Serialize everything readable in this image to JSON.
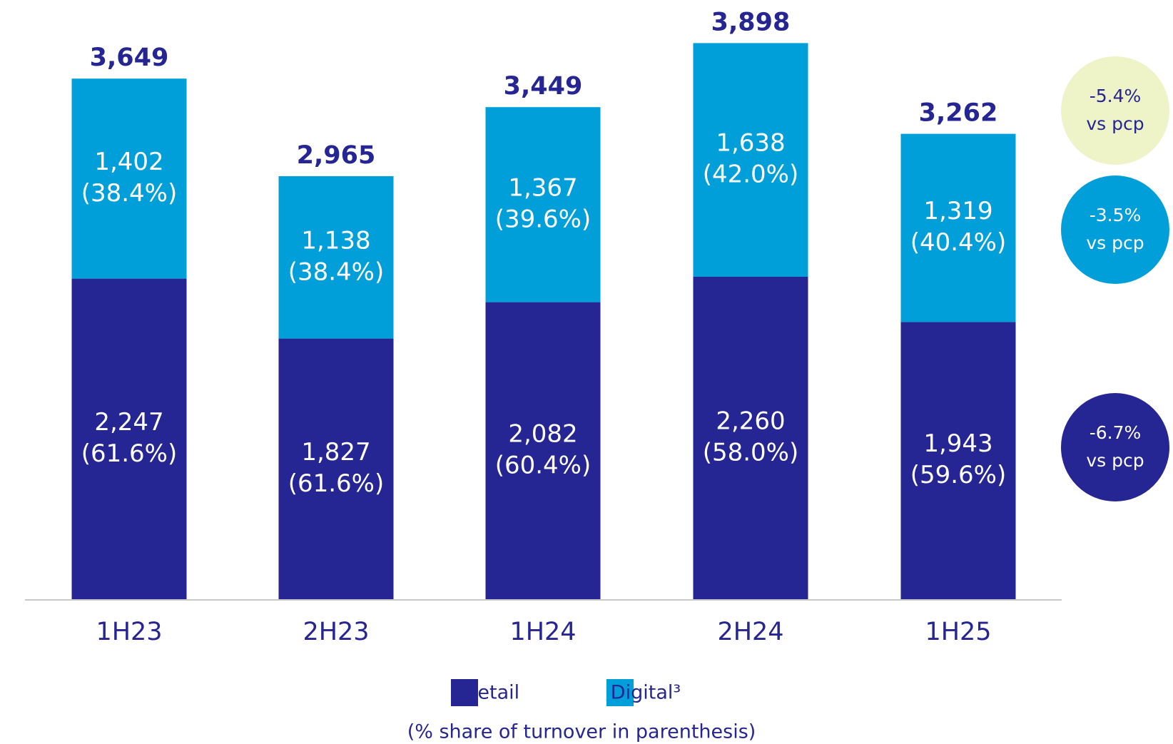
{
  "chart_data": {
    "type": "stacked_bar",
    "categories": [
      "1H23",
      "2H23",
      "1H24",
      "2H24",
      "1H25"
    ],
    "series": [
      {
        "name": "Retail",
        "color": "#252593",
        "values": [
          2247,
          1827,
          2082,
          2260,
          1943
        ],
        "value_labels": [
          "2,247",
          "1,827",
          "2,082",
          "2,260",
          "1,943"
        ],
        "share_labels": [
          "(61.6%)",
          "(61.6%)",
          "(60.4%)",
          "(58.0%)",
          "(59.6%)"
        ]
      },
      {
        "name": "Digital³",
        "color": "#009fd9",
        "values": [
          1402,
          1138,
          1367,
          1638,
          1319
        ],
        "value_labels": [
          "1,402",
          "1,138",
          "1,367",
          "1,638",
          "1,319"
        ],
        "share_labels": [
          "(38.4%)",
          "(38.4%)",
          "(39.6%)",
          "(42.0%)",
          "(40.4%)"
        ]
      }
    ],
    "totals": [
      3649,
      2965,
      3449,
      3898,
      3262
    ],
    "total_labels": [
      "3,649",
      "2,965",
      "3,449",
      "3,898",
      "3,262"
    ],
    "ylim": [
      0,
      4000
    ],
    "annotations": [
      {
        "text": "-5.4%",
        "subtext": "vs pcp",
        "color": "#eef3c8",
        "text_color": "#252593"
      },
      {
        "text": "-3.5%",
        "subtext": "vs pcp",
        "color": "#009fd9",
        "text_color": "#ffffff"
      },
      {
        "text": "-6.7%",
        "subtext": "vs pcp",
        "color": "#252593",
        "text_color": "#ffffff"
      }
    ],
    "note": "(% share of turnover in parenthesis)"
  }
}
